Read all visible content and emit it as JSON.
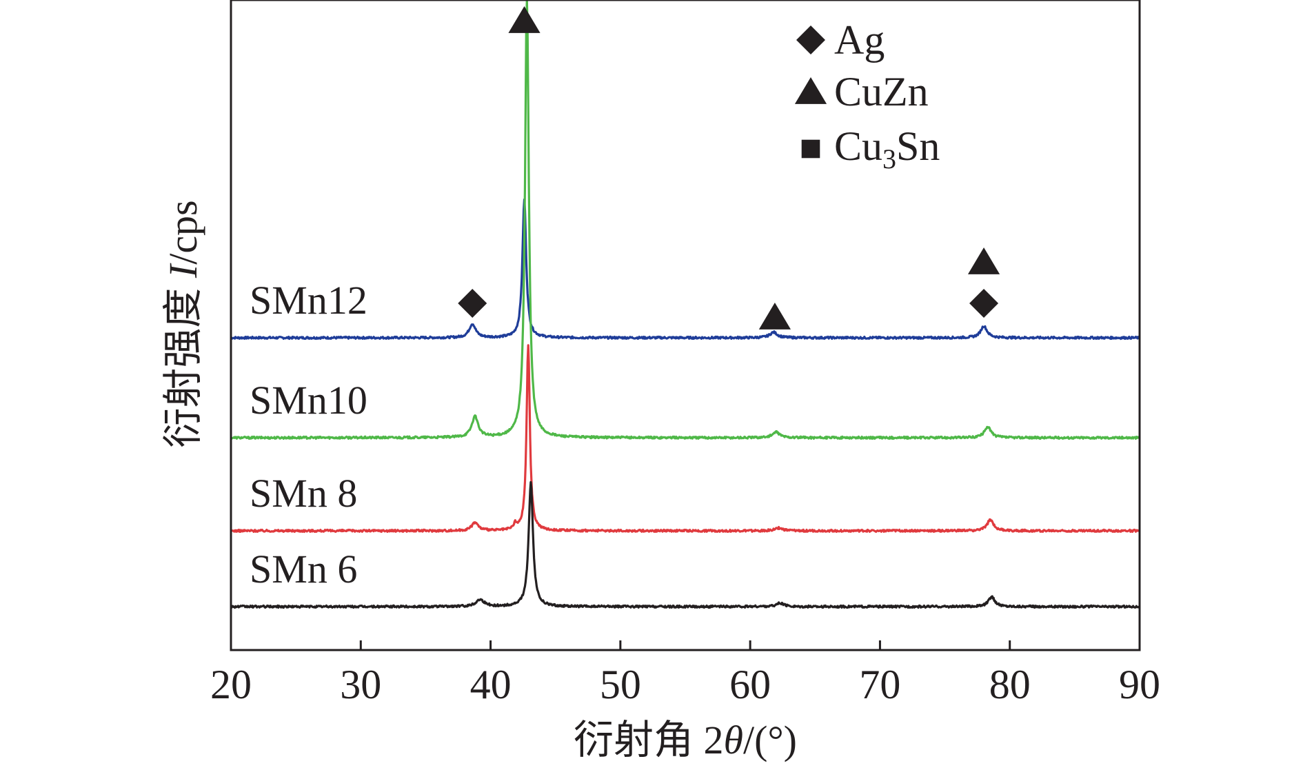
{
  "chart_data": {
    "type": "line",
    "title": "",
    "xlabel_prefix": "衍射角 2",
    "xlabel_symbol": "θ",
    "xlabel_suffix": "/(°)",
    "ylabel_prefix": "衍射强度 ",
    "ylabel_symbol": "I",
    "ylabel_suffix": "/cps",
    "xlim": [
      20,
      90
    ],
    "x_ticks": [
      20,
      30,
      40,
      50,
      60,
      70,
      80,
      90
    ],
    "y_ticks": [],
    "grid": false,
    "series": [
      {
        "name": "SMn12",
        "label": "SMn12",
        "color": "#1f3d99",
        "baseline": 0.39,
        "peaks": [
          {
            "x": 38.6,
            "height": 0.02,
            "width": 0.6
          },
          {
            "x": 42.6,
            "height": 0.2,
            "width": 0.35
          },
          {
            "x": 61.8,
            "height": 0.008,
            "width": 0.7
          },
          {
            "x": 78.0,
            "height": 0.017,
            "width": 0.6
          }
        ]
      },
      {
        "name": "SMn10",
        "label": "SMn10",
        "color": "#4fb848",
        "baseline": 0.245,
        "peaks": [
          {
            "x": 38.8,
            "height": 0.03,
            "width": 0.6
          },
          {
            "x": 42.8,
            "height": 0.64,
            "width": 0.35
          },
          {
            "x": 62.0,
            "height": 0.008,
            "width": 0.7
          },
          {
            "x": 78.3,
            "height": 0.016,
            "width": 0.6
          }
        ]
      },
      {
        "name": "SMn8",
        "label": "SMn 8",
        "color": "#e03a3e",
        "baseline": 0.11,
        "peaks": [
          {
            "x": 38.8,
            "height": 0.012,
            "width": 0.6
          },
          {
            "x": 41.9,
            "height": 0.008,
            "width": 0.3
          },
          {
            "x": 42.9,
            "height": 0.27,
            "width": 0.3
          },
          {
            "x": 62.2,
            "height": 0.004,
            "width": 0.7
          },
          {
            "x": 78.5,
            "height": 0.016,
            "width": 0.6
          }
        ]
      },
      {
        "name": "SMn6",
        "label": "SMn 6",
        "color": "#231f20",
        "baseline": 0.0,
        "peaks": [
          {
            "x": 39.2,
            "height": 0.01,
            "width": 0.8
          },
          {
            "x": 43.1,
            "height": 0.18,
            "width": 0.4
          },
          {
            "x": 62.3,
            "height": 0.005,
            "width": 0.7
          },
          {
            "x": 78.6,
            "height": 0.014,
            "width": 0.6
          }
        ]
      }
    ],
    "legend": {
      "placement": "top-right",
      "entries": [
        {
          "marker": "diamond",
          "label": "Ag"
        },
        {
          "marker": "triangle",
          "label": "CuZn"
        },
        {
          "marker": "square",
          "label_prefix": "Cu",
          "label_sub": "3",
          "label_suffix": "Sn"
        }
      ]
    },
    "annotations": [
      {
        "marker": "diamond",
        "x": 38.6,
        "level": 0.44
      },
      {
        "marker": "triangle",
        "x": 42.6,
        "level": 0.85
      },
      {
        "marker": "triangle",
        "x": 61.9,
        "level": 0.42
      },
      {
        "marker": "diamond",
        "x": 78.0,
        "level": 0.44
      },
      {
        "marker": "triangle",
        "x": 78.0,
        "level": 0.5
      }
    ]
  }
}
